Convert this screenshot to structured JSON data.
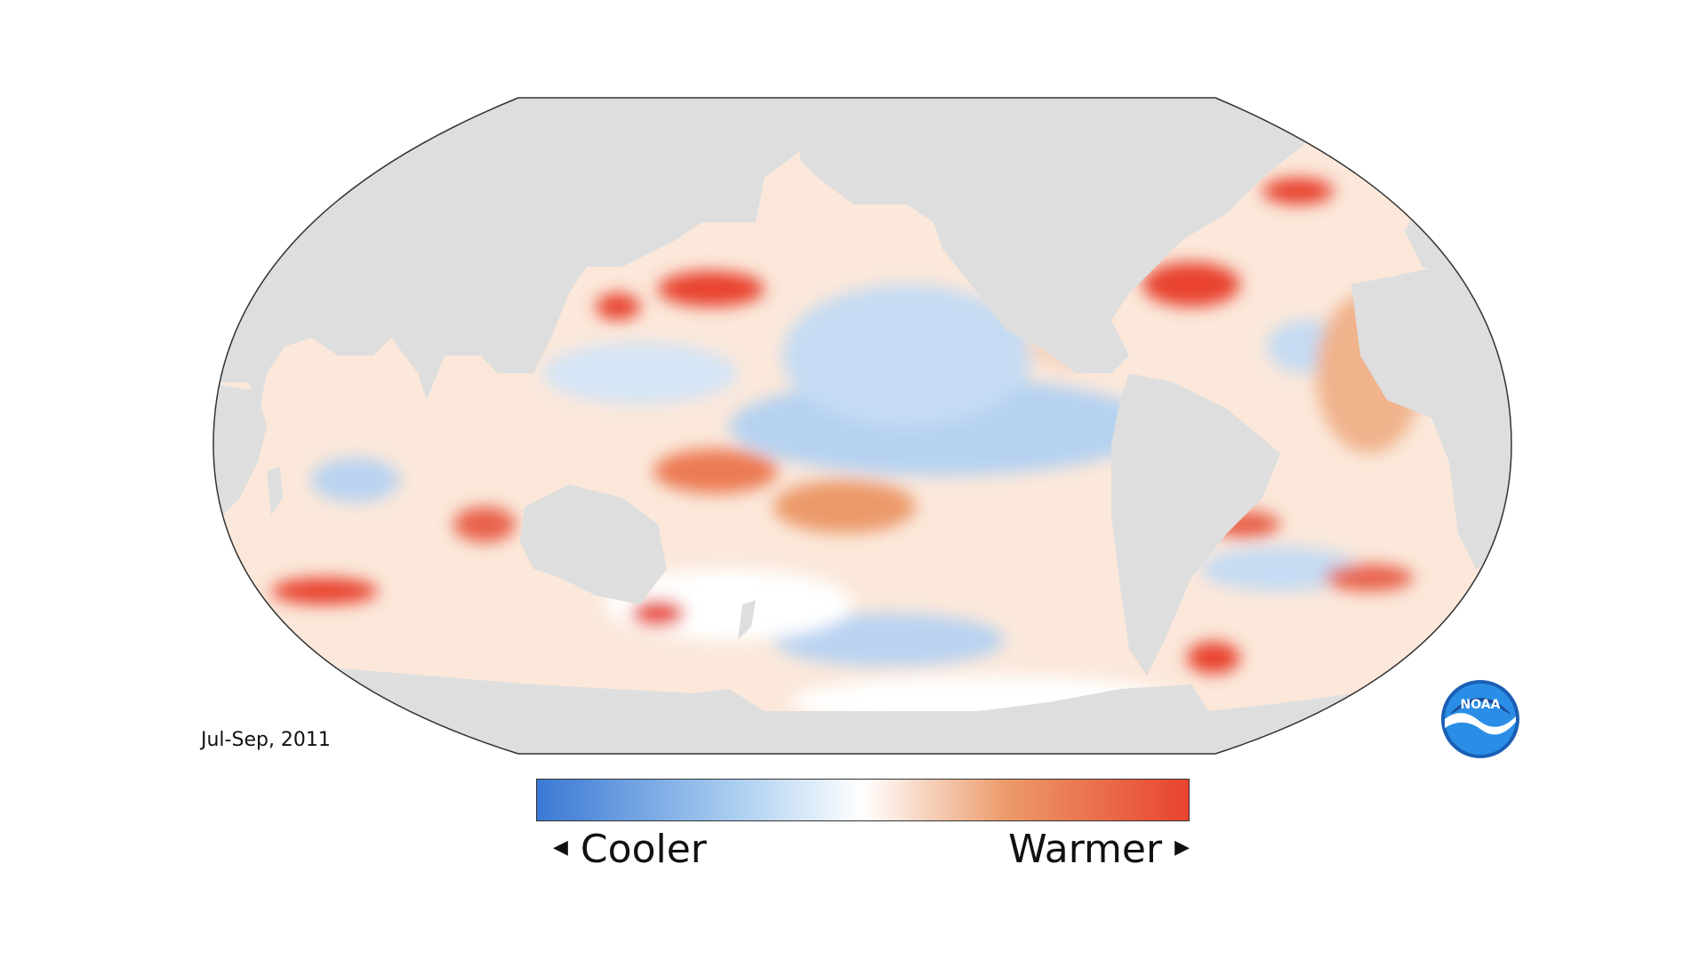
{
  "map": {
    "projection": "Robinson",
    "center_longitude": "Pacific-centered",
    "colors": {
      "land": "#dedede",
      "ocean_neutral": "#ffffff",
      "cool_strong": "#3a78d4",
      "cool_light": "#a9cdf0",
      "warm_light": "#f2c4a3",
      "warm_medium": "#ec9a6b",
      "warm_strong": "#e8432e",
      "outline": "#333333"
    }
  },
  "date_label": "Jul-Sep, 2011",
  "legend": {
    "cool_label": "Cooler",
    "warm_label": "Warmer",
    "cool_arrow": "◀",
    "warm_arrow": "▶"
  },
  "logo": {
    "text": "NOAA",
    "icon": "noaa-logo-icon",
    "colors": {
      "outer": "#1a5fb4",
      "inner": "#2a8ee6",
      "band": "#ffffff"
    }
  }
}
